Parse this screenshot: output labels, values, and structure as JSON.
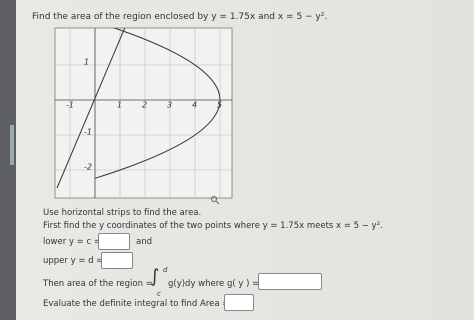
{
  "question": {
    "title": "Find the area of the region enclosed by y = 1.75x and x = 5 − y².",
    "graph": {
      "x_tick_labels": [
        "-1",
        "1",
        "2",
        "3",
        "4",
        "5"
      ],
      "y_tick_labels": [
        "1",
        "-1",
        "-2"
      ]
    },
    "hint": "Use horizontal strips to find the area.",
    "step1": "First find the y coordinates of the two points where y = 1.75x meets x = 5 − y².",
    "lower_label": "lower y = c =",
    "and": "and",
    "upper_label": "upper y = d =",
    "area_label": "Then area of the region =",
    "integral": {
      "sign": "∫",
      "upper": "d",
      "lower": "c",
      "integrand": "g(y)dy where g( y ) ="
    },
    "evaluate_label": "Evaluate the definite integral to find Area ="
  }
}
